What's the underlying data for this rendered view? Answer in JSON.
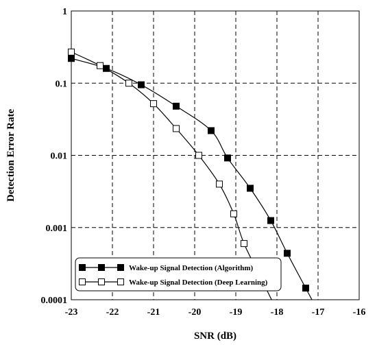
{
  "chart_data": {
    "type": "line",
    "title": "",
    "xlabel": "SNR (dB)",
    "ylabel": "Detection Error Rate",
    "xlim": [
      -23,
      -16
    ],
    "ylim": [
      0.0001,
      1
    ],
    "yscale": "log",
    "grid": true,
    "legend_position": "bottom-left",
    "x_tick_labels": [
      "-23",
      "-22",
      "-21",
      "-20",
      "-19",
      "-18",
      "-17",
      "-16"
    ],
    "y_tick_labels": [
      "1",
      "0.1",
      "0.01",
      "0.001",
      "0.0001"
    ],
    "series": [
      {
        "name": "Wake-up Signal Detection (Algorithm)",
        "marker": "filled-square",
        "color": "#000000",
        "x": [
          -23.0,
          -22.15,
          -21.3,
          -20.45,
          -19.6,
          -19.2,
          -18.65,
          -18.15,
          -17.75,
          -17.3
        ],
        "y": [
          0.22,
          0.16,
          0.095,
          0.048,
          0.022,
          0.0092,
          0.0035,
          0.00125,
          0.00044,
          0.000145
        ]
      },
      {
        "name": "Wake-up Signal Detection (Deep Learning)",
        "marker": "open-square",
        "color": "#000000",
        "x": [
          -23.0,
          -22.3,
          -21.6,
          -21.0,
          -20.45,
          -19.9,
          -19.4,
          -19.05,
          -18.8,
          -18.35
        ],
        "y": [
          0.27,
          0.175,
          0.1,
          0.052,
          0.0235,
          0.01,
          0.004,
          0.00155,
          0.0006,
          0.00018
        ]
      }
    ]
  }
}
